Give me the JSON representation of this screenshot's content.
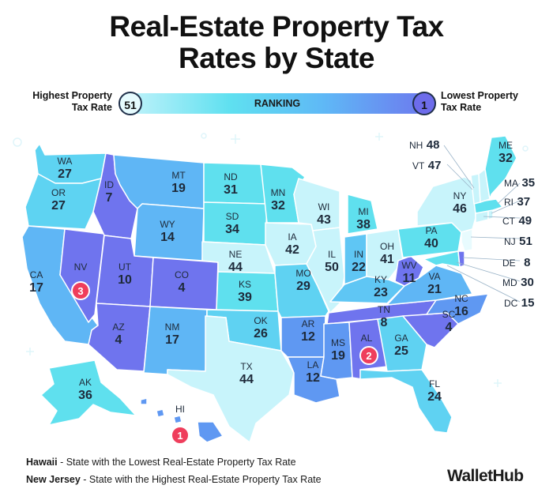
{
  "title_line1": "Real-Estate Property Tax",
  "title_line2": "Rates by State",
  "legend": {
    "high_label_1": "Highest Property",
    "high_label_2": "Tax Rate",
    "high_value": "51",
    "bar_label": "RANKING",
    "low_value": "1",
    "low_label_1": "Lowest Property",
    "low_label_2": "Tax Rate",
    "color_high_rank": "#c8f4fb",
    "color_low_rank": "#6e74ee"
  },
  "states": {
    "WA": {
      "abbr": "WA",
      "rank": "27"
    },
    "OR": {
      "abbr": "OR",
      "rank": "27"
    },
    "CA": {
      "abbr": "CA",
      "rank": "17"
    },
    "ID": {
      "abbr": "ID",
      "rank": "7"
    },
    "NV": {
      "abbr": "NV",
      "rank": "3"
    },
    "MT": {
      "abbr": "MT",
      "rank": "19"
    },
    "WY": {
      "abbr": "WY",
      "rank": "14"
    },
    "UT": {
      "abbr": "UT",
      "rank": "10"
    },
    "AZ": {
      "abbr": "AZ",
      "rank": "4"
    },
    "CO": {
      "abbr": "CO",
      "rank": "4"
    },
    "NM": {
      "abbr": "NM",
      "rank": "17"
    },
    "ND": {
      "abbr": "ND",
      "rank": "31"
    },
    "SD": {
      "abbr": "SD",
      "rank": "34"
    },
    "NE": {
      "abbr": "NE",
      "rank": "44"
    },
    "KS": {
      "abbr": "KS",
      "rank": "39"
    },
    "OK": {
      "abbr": "OK",
      "rank": "26"
    },
    "TX": {
      "abbr": "TX",
      "rank": "44"
    },
    "MN": {
      "abbr": "MN",
      "rank": "32"
    },
    "IA": {
      "abbr": "IA",
      "rank": "42"
    },
    "MO": {
      "abbr": "MO",
      "rank": "29"
    },
    "AR": {
      "abbr": "AR",
      "rank": "12"
    },
    "LA": {
      "abbr": "LA",
      "rank": "12"
    },
    "WI": {
      "abbr": "WI",
      "rank": "43"
    },
    "IL": {
      "abbr": "IL",
      "rank": "50"
    },
    "MI": {
      "abbr": "MI",
      "rank": "38"
    },
    "IN": {
      "abbr": "IN",
      "rank": "22"
    },
    "OH": {
      "abbr": "OH",
      "rank": "41"
    },
    "KY": {
      "abbr": "KY",
      "rank": "23"
    },
    "TN": {
      "abbr": "TN",
      "rank": "8"
    },
    "MS": {
      "abbr": "MS",
      "rank": "19"
    },
    "AL": {
      "abbr": "AL",
      "rank": "2"
    },
    "GA": {
      "abbr": "GA",
      "rank": "25"
    },
    "FL": {
      "abbr": "FL",
      "rank": "24"
    },
    "SC": {
      "abbr": "SC",
      "rank": "4"
    },
    "NC": {
      "abbr": "NC",
      "rank": "16"
    },
    "VA": {
      "abbr": "VA",
      "rank": "21"
    },
    "WV": {
      "abbr": "WV",
      "rank": "11"
    },
    "PA": {
      "abbr": "PA",
      "rank": "40"
    },
    "NY": {
      "abbr": "NY",
      "rank": "46"
    },
    "ME": {
      "abbr": "ME",
      "rank": "32"
    },
    "VT": {
      "abbr": "VT",
      "rank": "47"
    },
    "NH": {
      "abbr": "NH",
      "rank": "48"
    },
    "MA": {
      "abbr": "MA",
      "rank": "35"
    },
    "RI": {
      "abbr": "RI",
      "rank": "37"
    },
    "CT": {
      "abbr": "CT",
      "rank": "49"
    },
    "NJ": {
      "abbr": "NJ",
      "rank": "51"
    },
    "DE": {
      "abbr": "DE",
      "rank": "8"
    },
    "MD": {
      "abbr": "MD",
      "rank": "30"
    },
    "DC": {
      "abbr": "DC",
      "rank": "15"
    },
    "AK": {
      "abbr": "AK",
      "rank": "36"
    },
    "HI": {
      "abbr": "HI",
      "rank": "1"
    }
  },
  "notes": {
    "line1_bold": "Hawaii",
    "line1_rest": " - State with the Lowest Real-Estate Property Tax Rate",
    "line2_bold": "New Jersey",
    "line2_rest": " - State with the Highest Real-Estate Property Tax Rate"
  },
  "logo": "WalletHub",
  "badge_color": "#ef3e5c"
}
